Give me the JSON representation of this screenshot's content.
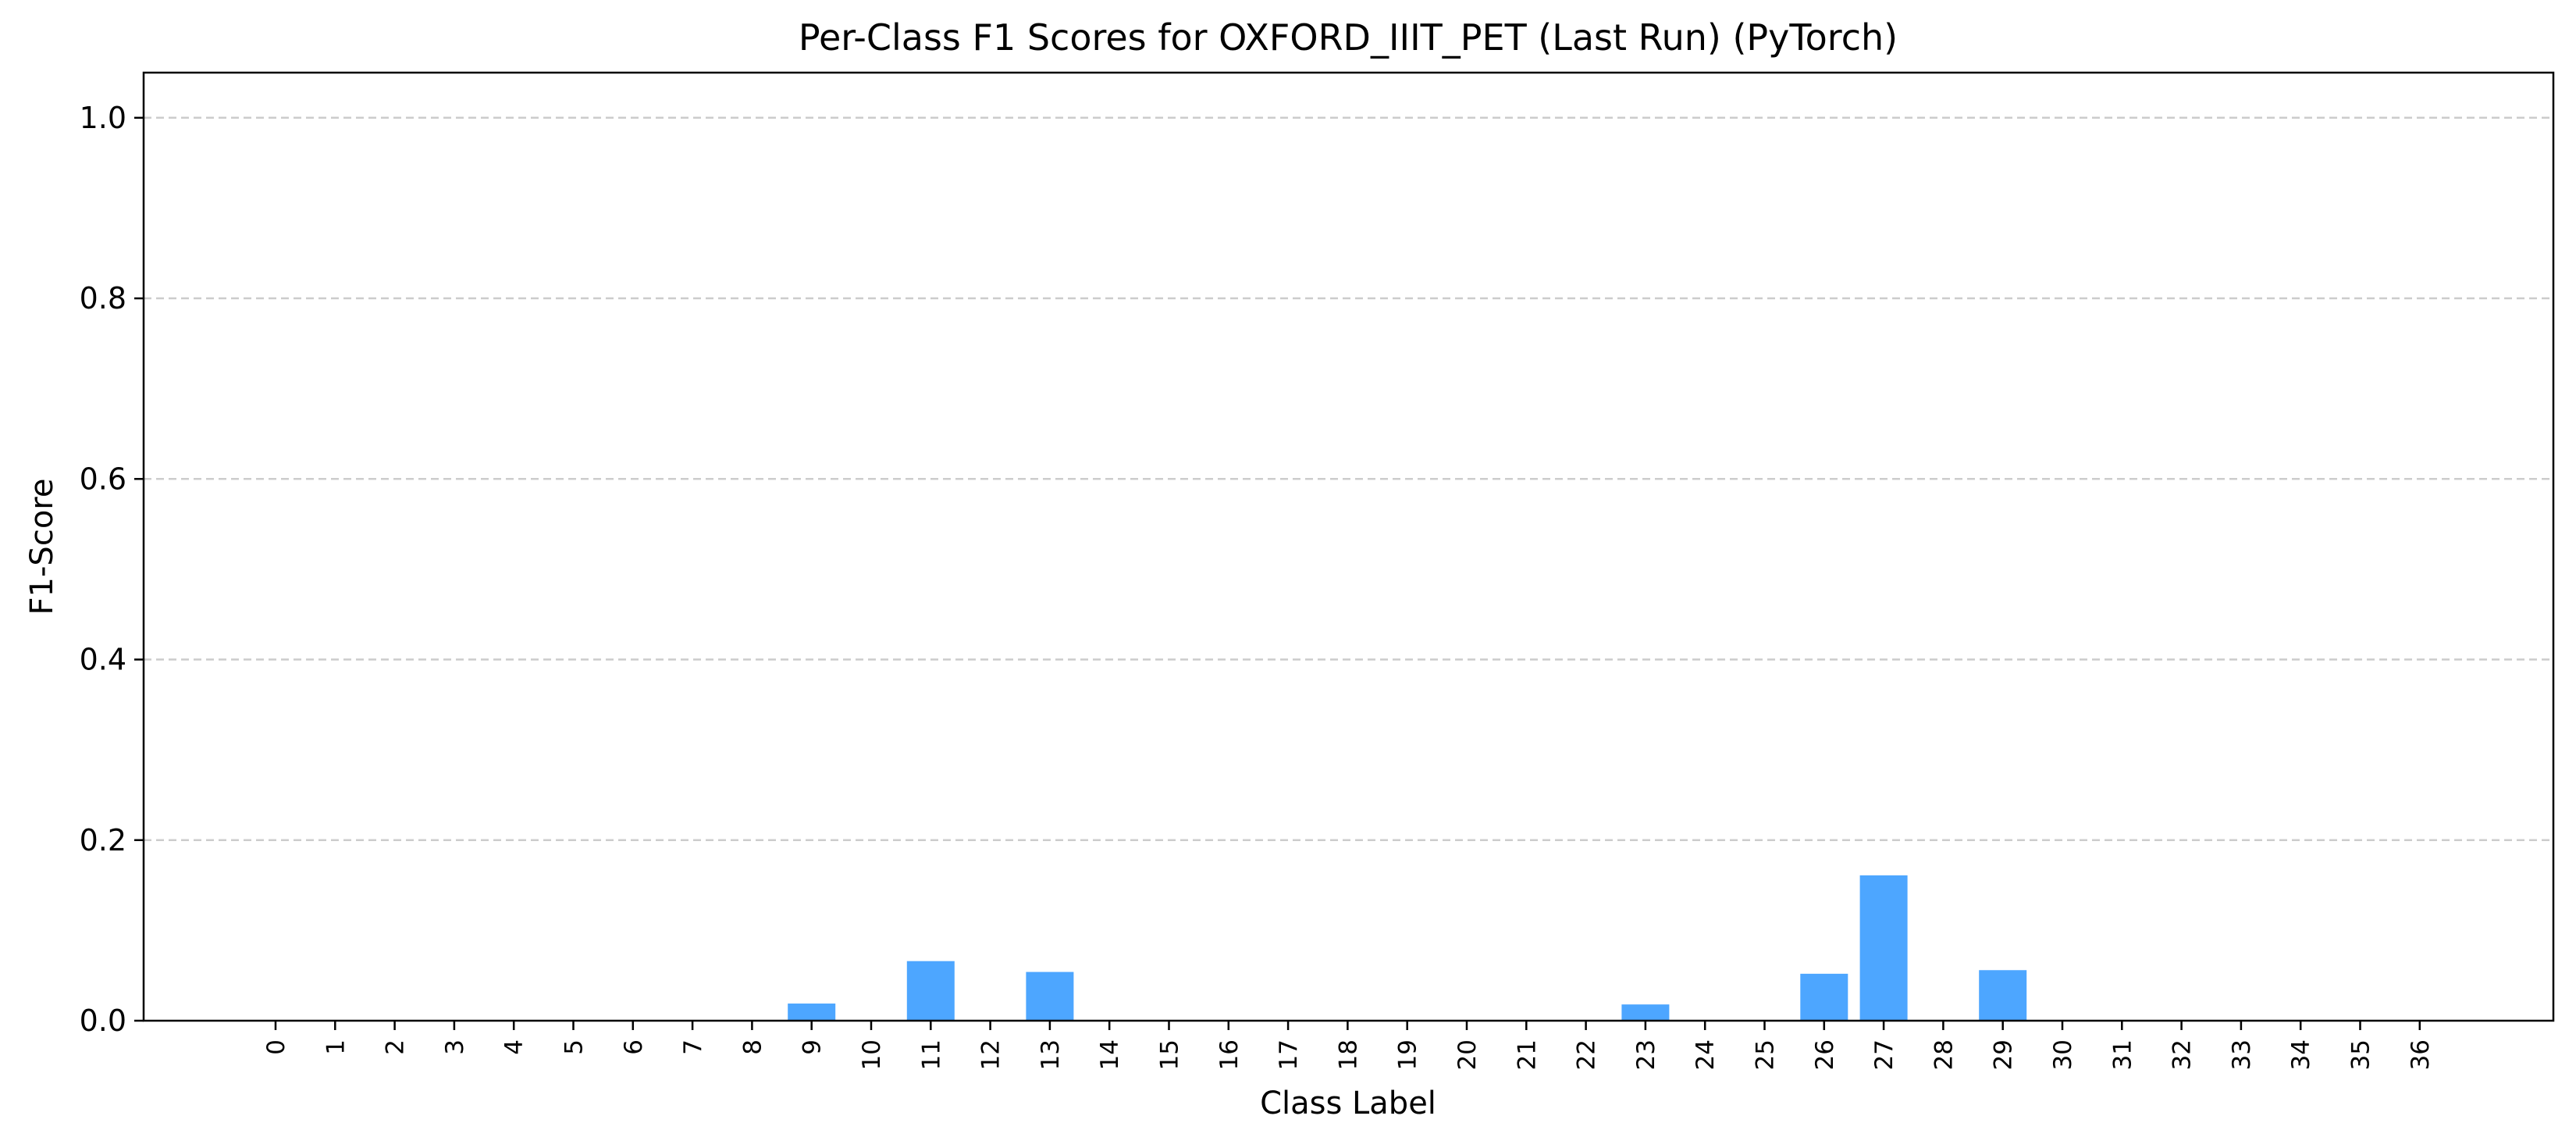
{
  "chart_data": {
    "type": "bar",
    "title": "Per-Class F1 Scores for OXFORD_IIIT_PET (Last Run) (PyTorch)",
    "xlabel": "Class Label",
    "ylabel": "F1-Score",
    "categories": [
      "0",
      "1",
      "2",
      "3",
      "4",
      "5",
      "6",
      "7",
      "8",
      "9",
      "10",
      "11",
      "12",
      "13",
      "14",
      "15",
      "16",
      "17",
      "18",
      "19",
      "20",
      "21",
      "22",
      "23",
      "24",
      "25",
      "26",
      "27",
      "28",
      "29",
      "30",
      "31",
      "32",
      "33",
      "34",
      "35",
      "36"
    ],
    "values": [
      0,
      0,
      0,
      0,
      0,
      0,
      0,
      0,
      0,
      0.019,
      0,
      0.066,
      0,
      0.054,
      0,
      0,
      0,
      0,
      0,
      0,
      0,
      0,
      0,
      0.018,
      0,
      0,
      0.052,
      0.161,
      0,
      0.056,
      0,
      0,
      0,
      0,
      0,
      0,
      0
    ],
    "ylim": [
      0,
      1.05
    ],
    "yticks": [
      0.0,
      0.2,
      0.4,
      0.6,
      0.8,
      1.0
    ],
    "ytick_labels": [
      "0.0",
      "0.2",
      "0.4",
      "0.6",
      "0.8",
      "1.0"
    ],
    "grid": "y-dashed",
    "legend": "none",
    "bar_color": "#4da6ff",
    "grid_color": "#cccccc"
  }
}
